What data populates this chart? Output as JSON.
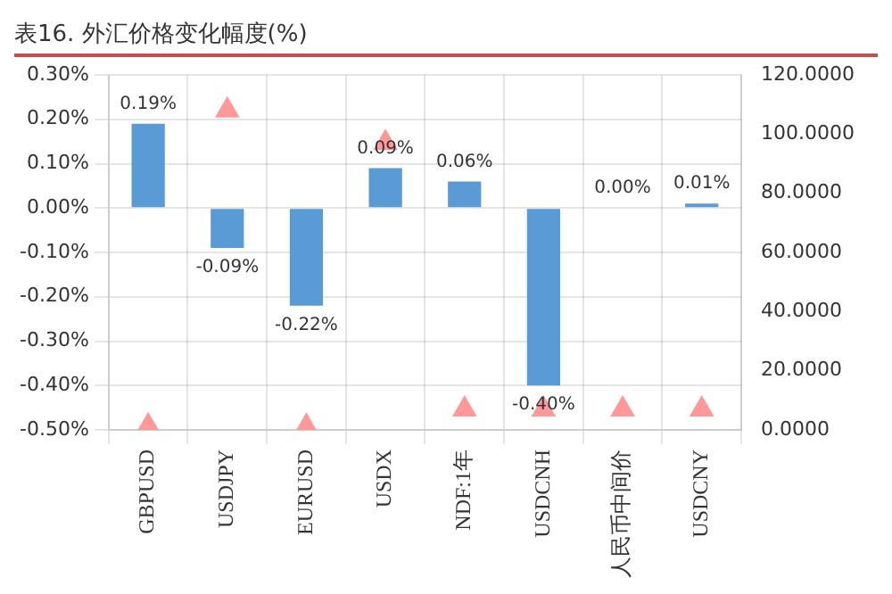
{
  "chart_data": {
    "type": "bar",
    "title": "表16. 外汇价格变化幅度(%)",
    "categories": [
      "GBPUSD",
      "USDJPY",
      "EURUSD",
      "USDX",
      "NDF:1年",
      "USDCNH",
      "人民币中间价",
      "USDCNY"
    ],
    "series": [
      {
        "color": "#5b9bd5",
        "values": [
          0.19,
          -0.09,
          -0.22,
          0.09,
          0.06,
          -0.4,
          0.0,
          0.01
        ],
        "value_labels": [
          "0.19%",
          "-0.09%",
          "-0.22%",
          "0.09%",
          "0.06%",
          "-0.40%",
          "0.00%",
          "0.01%"
        ]
      },
      {
        "type": "scatter",
        "axis": "y2",
        "marker": "triangle",
        "color": "#ff9999",
        "values": [
          1.3,
          108,
          1.1,
          97,
          6.9,
          6.9,
          6.9,
          6.9
        ]
      }
    ],
    "ylim": [
      -0.5,
      0.3
    ],
    "yticks": [
      {
        "value": -0.5,
        "label": "-0.50%"
      },
      {
        "value": -0.4,
        "label": "-0.40%"
      },
      {
        "value": -0.3,
        "label": "-0.30%"
      },
      {
        "value": -0.2,
        "label": "-0.20%"
      },
      {
        "value": -0.1,
        "label": "-0.10%"
      },
      {
        "value": 0,
        "label": "0.00%"
      },
      {
        "value": 0.1,
        "label": "0.10%"
      },
      {
        "value": 0.2,
        "label": "0.20%"
      },
      {
        "value": 0.3,
        "label": "0.30%"
      }
    ],
    "y2lim": [
      0,
      120
    ],
    "y2ticks": [
      {
        "value": 0,
        "label": "0.0000"
      },
      {
        "value": 20,
        "label": "20.0000"
      },
      {
        "value": 40,
        "label": "40.0000"
      },
      {
        "value": 60,
        "label": "60.0000"
      },
      {
        "value": 80,
        "label": "80.0000"
      },
      {
        "value": 100,
        "label": "100.0000"
      },
      {
        "value": 120,
        "label": "120.0000"
      }
    ],
    "grid": true,
    "legend": false
  }
}
